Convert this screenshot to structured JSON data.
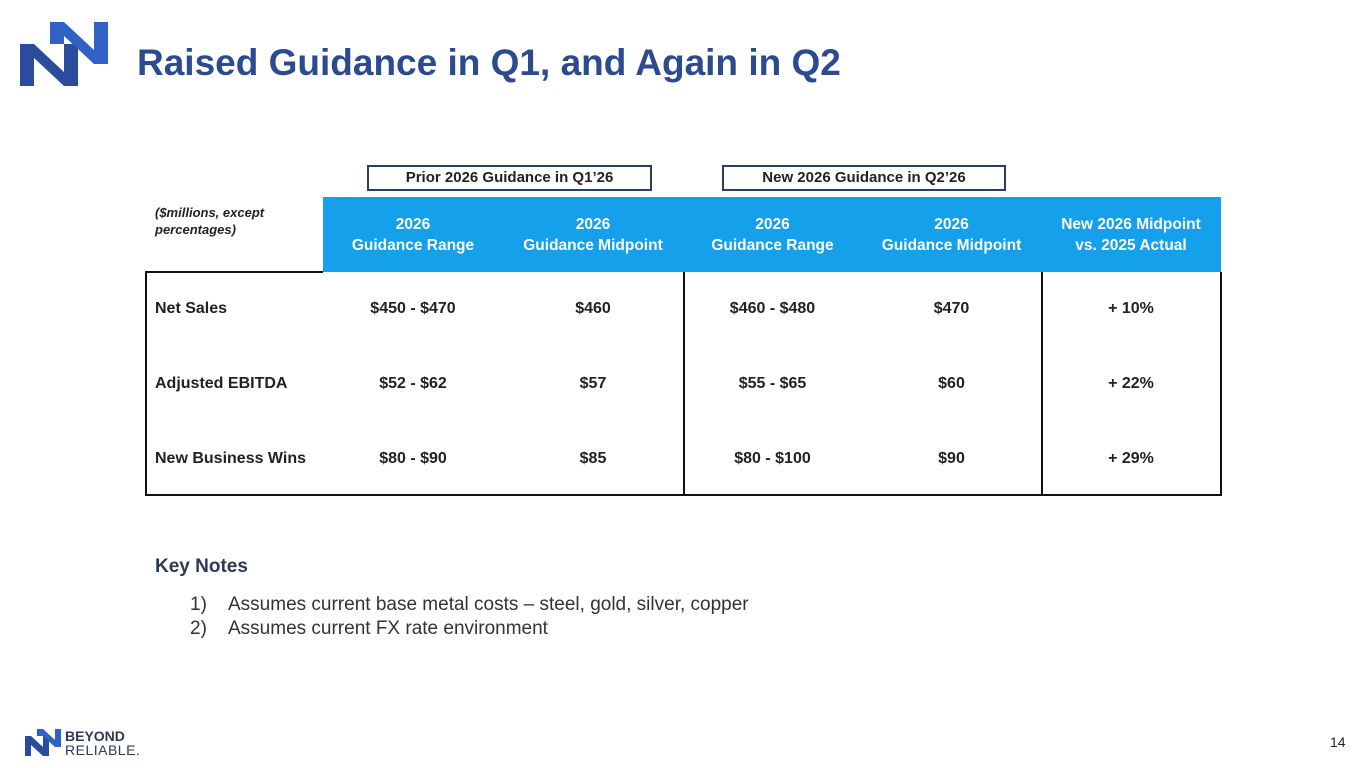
{
  "header": {
    "title": "Raised Guidance in Q1, and Again in Q2"
  },
  "table": {
    "groups": [
      "Prior 2026 Guidance in Q1’26",
      "New 2026 Guidance in Q2’26"
    ],
    "unit_note": "($millions, except percentages)",
    "columns": [
      [
        "2026",
        "Guidance Range"
      ],
      [
        "2026",
        "Guidance Midpoint"
      ],
      [
        "2026",
        "Guidance Range"
      ],
      [
        "2026",
        "Guidance Midpoint"
      ],
      [
        "New 2026 Midpoint",
        "vs. 2025 Actual"
      ]
    ],
    "rows": [
      [
        "Net Sales",
        "$450 - $470",
        "$460",
        "$460 - $480",
        "$470",
        "+ 10%"
      ],
      [
        "Adjusted EBITDA",
        "$52 - $62",
        "$57",
        "$55 - $65",
        "$60",
        "+ 22%"
      ],
      [
        "New Business Wins",
        "$80 - $90",
        "$85",
        "$80 - $100",
        "$90",
        "+ 29%"
      ]
    ]
  },
  "notes": {
    "heading": "Key Notes",
    "items": [
      [
        "1)",
        "Assumes current base metal costs – steel, gold, silver, copper"
      ],
      [
        "2)",
        "Assumes current FX rate environment"
      ]
    ]
  },
  "footer": {
    "logo_top": "BEYOND",
    "logo_bottom": "RELIABLE.",
    "page_number": "14"
  }
}
